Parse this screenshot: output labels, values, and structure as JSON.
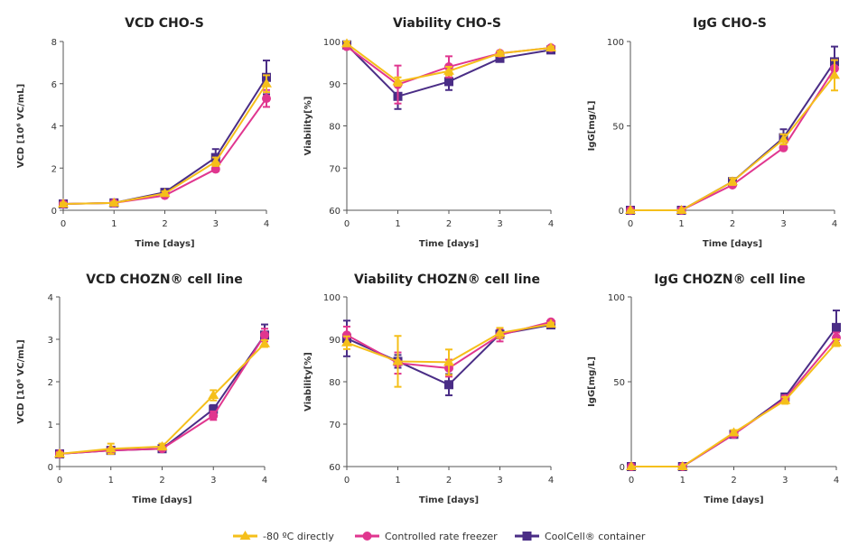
{
  "legend": [
    {
      "name": "-80 ºC directly",
      "color": "#f5bf1a",
      "marker": "triangle"
    },
    {
      "name": "Controlled rate freezer",
      "color": "#e0368f",
      "marker": "circle"
    },
    {
      "name": "CoolCell® container",
      "color": "#4a2d86",
      "marker": "square"
    }
  ],
  "chart_data": [
    {
      "type": "line",
      "title": "VCD CHO-S",
      "xlabel": "Time [days]",
      "ylabel": "VCD [10⁶ VC/mL]",
      "x": [
        0,
        1,
        2,
        3,
        4
      ],
      "xticks": [
        "0",
        "1",
        "2",
        "3",
        "4"
      ],
      "ylim": [
        0,
        8
      ],
      "yticks": [
        "0",
        "2",
        "4",
        "6",
        "8"
      ],
      "grid": false,
      "series": [
        {
          "name": "CoolCell® container",
          "values": [
            0.3,
            0.35,
            0.85,
            2.5,
            6.3
          ],
          "error": [
            0.05,
            0.05,
            0.1,
            0.4,
            0.8
          ]
        },
        {
          "name": "Controlled rate freezer",
          "values": [
            0.3,
            0.35,
            0.7,
            1.95,
            5.3
          ],
          "error": [
            0.05,
            0.05,
            0.05,
            0.1,
            0.4
          ]
        },
        {
          "name": "-80 ºC directly",
          "values": [
            0.3,
            0.35,
            0.8,
            2.3,
            6.0
          ],
          "error": [
            0.05,
            0.05,
            0.1,
            0.2,
            0.4
          ]
        }
      ]
    },
    {
      "type": "line",
      "title": "Viability CHO-S",
      "xlabel": "Time [days]",
      "ylabel": "Viability[%]",
      "x": [
        0,
        1,
        2,
        3,
        4
      ],
      "xticks": [
        "0",
        "1",
        "2",
        "3",
        "4"
      ],
      "ylim": [
        60,
        100
      ],
      "yticks": [
        "60",
        "70",
        "80",
        "90",
        "100"
      ],
      "grid": false,
      "series": [
        {
          "name": "CoolCell® container",
          "values": [
            99.2,
            87,
            90.5,
            96,
            98
          ],
          "error": [
            0.5,
            3,
            2,
            0.5,
            0.3
          ]
        },
        {
          "name": "Controlled rate freezer",
          "values": [
            98.8,
            89.8,
            94,
            97.2,
            98.5
          ],
          "error": [
            0.5,
            4.5,
            2.5,
            0.5,
            0.3
          ]
        },
        {
          "name": "-80 ºC directly",
          "values": [
            99.5,
            90.5,
            93,
            97.2,
            98.5
          ],
          "error": [
            0.5,
            1,
            1,
            0.5,
            0.3
          ]
        }
      ]
    },
    {
      "type": "line",
      "title": "IgG CHO-S",
      "xlabel": "Time [days]",
      "ylabel": "IgG[mg/L]",
      "x": [
        0,
        1,
        2,
        3,
        4
      ],
      "xticks": [
        "0",
        "1",
        "2",
        "3",
        "4"
      ],
      "ylim": [
        0,
        100
      ],
      "yticks": [
        "0",
        "50",
        "100"
      ],
      "grid": false,
      "series": [
        {
          "name": "CoolCell® container",
          "values": [
            0,
            0,
            17,
            43,
            88
          ],
          "error": [
            0,
            0,
            2,
            5,
            9
          ]
        },
        {
          "name": "Controlled rate freezer",
          "values": [
            0,
            0,
            15,
            37,
            84
          ],
          "error": [
            0,
            0,
            1,
            1,
            5
          ]
        },
        {
          "name": "-80 ºC directly",
          "values": [
            0,
            0,
            17,
            42,
            80
          ],
          "error": [
            0,
            0,
            2,
            3,
            9
          ]
        }
      ]
    },
    {
      "type": "line",
      "title": "VCD CHOZN® cell line",
      "xlabel": "Time [days]",
      "ylabel": "VCD [10⁶ VC/mL]",
      "x": [
        0,
        1,
        2,
        3,
        4
      ],
      "xticks": [
        "0",
        "1",
        "2",
        "3",
        "4"
      ],
      "ylim": [
        0,
        4
      ],
      "yticks": [
        "0",
        "1",
        "2",
        "3",
        "4"
      ],
      "grid": false,
      "series": [
        {
          "name": "CoolCell® container",
          "values": [
            0.3,
            0.38,
            0.42,
            1.35,
            3.1
          ],
          "error": [
            0.03,
            0.05,
            0.03,
            0.1,
            0.25
          ]
        },
        {
          "name": "Controlled rate freezer",
          "values": [
            0.3,
            0.38,
            0.42,
            1.2,
            3.1
          ],
          "error": [
            0.03,
            0.05,
            0.03,
            0.1,
            0.15
          ]
        },
        {
          "name": "-80 ºC directly",
          "values": [
            0.3,
            0.42,
            0.47,
            1.68,
            2.9
          ],
          "error": [
            0.03,
            0.12,
            0.07,
            0.12,
            0.08
          ]
        }
      ]
    },
    {
      "type": "line",
      "title": "Viability CHOZN® cell line",
      "xlabel": "Time [days]",
      "ylabel": "Viability[%]",
      "x": [
        0,
        1,
        2,
        3,
        4
      ],
      "xticks": [
        "0",
        "1",
        "2",
        "3",
        "4"
      ],
      "ylim": [
        60,
        100
      ],
      "yticks": [
        "60",
        "70",
        "80",
        "90",
        "100"
      ],
      "grid": false,
      "series": [
        {
          "name": "CoolCell® container",
          "values": [
            90.2,
            84.8,
            79.3,
            91.2,
            93.4
          ],
          "error": [
            4.2,
            1.5,
            2.5,
            1,
            0.3
          ]
        },
        {
          "name": "Controlled rate freezer",
          "values": [
            91,
            84.4,
            83.2,
            91,
            94.1
          ],
          "error": [
            2,
            2.5,
            2,
            1.5,
            0.3
          ]
        },
        {
          "name": "-80 ºC directly",
          "values": [
            89.2,
            84.8,
            84.6,
            91.5,
            93.6
          ],
          "error": [
            1.5,
            6,
            3,
            1.2,
            0.3
          ]
        }
      ]
    },
    {
      "type": "line",
      "title": "IgG CHOZN® cell line",
      "xlabel": "Time [days]",
      "ylabel": "IgG[mg/L]",
      "x": [
        0,
        1,
        2,
        3,
        4
      ],
      "xticks": [
        "0",
        "1",
        "2",
        "3",
        "4"
      ],
      "ylim": [
        0,
        100
      ],
      "yticks": [
        "0",
        "50",
        "100"
      ],
      "grid": false,
      "series": [
        {
          "name": "CoolCell® container",
          "values": [
            0,
            0,
            19,
            41,
            82
          ],
          "error": [
            0,
            0,
            1,
            1.5,
            10
          ]
        },
        {
          "name": "Controlled rate freezer",
          "values": [
            0,
            0,
            19,
            40,
            76
          ],
          "error": [
            0,
            0,
            1,
            2,
            3
          ]
        },
        {
          "name": "-80 ºC directly",
          "values": [
            0,
            0,
            20,
            39,
            73
          ],
          "error": [
            0,
            0,
            1.5,
            2,
            2
          ]
        }
      ]
    }
  ]
}
